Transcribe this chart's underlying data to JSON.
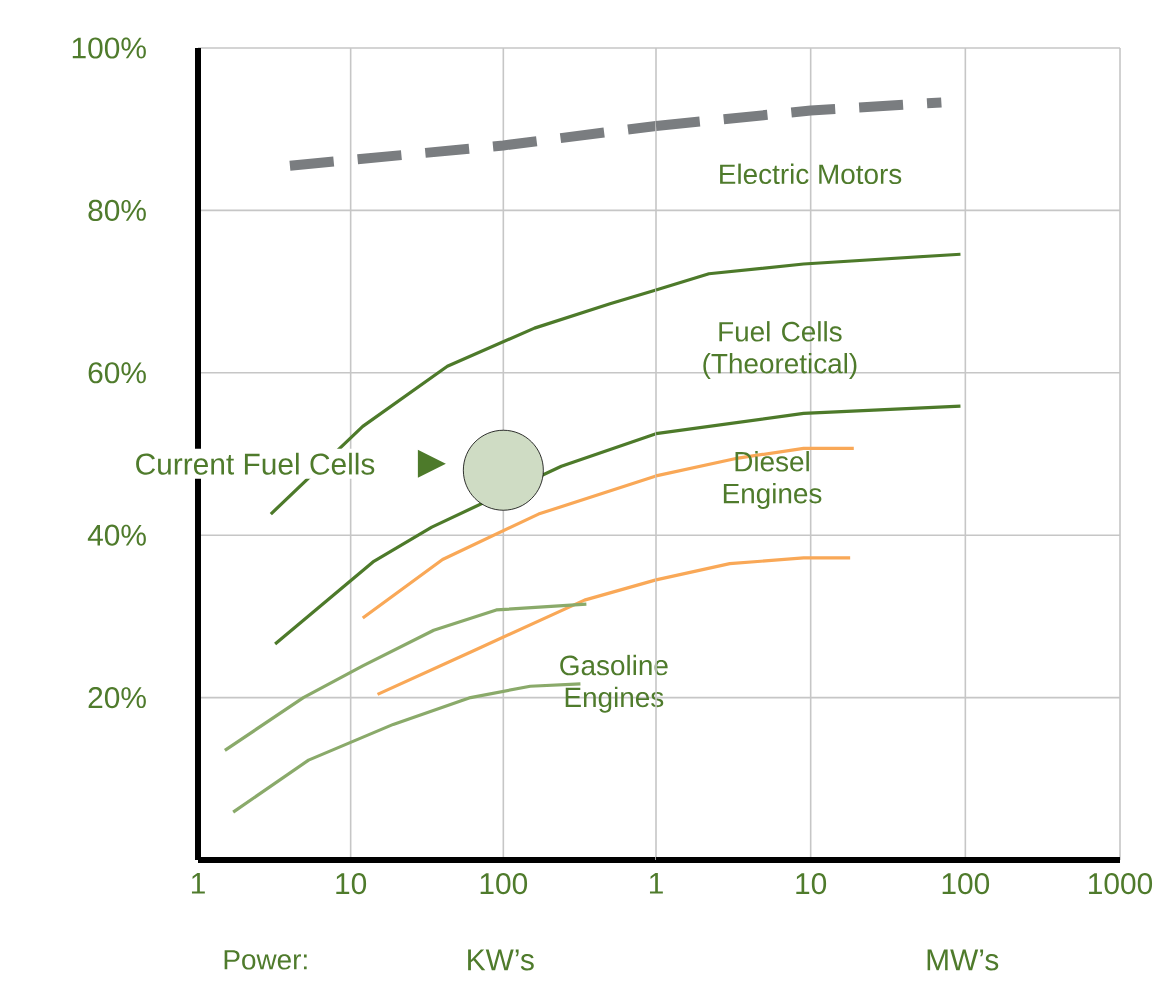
{
  "chart_data": [
    {
      "type": "line",
      "xlabel": "KW’s",
      "log": "x",
      "grid": true,
      "marker": "none",
      "line_style": "solid",
      "xlim": [
        1,
        1000
      ],
      "ylim": [
        0,
        100
      ],
      "xticks": [
        1,
        10,
        100
      ],
      "yticks": [
        {
          "value": 20,
          "label": "20%"
        },
        {
          "value": 40,
          "label": "40%"
        },
        {
          "value": 60,
          "label": "60%"
        },
        {
          "value": 80,
          "label": "80%"
        },
        {
          "value": 100,
          "label": "100%"
        }
      ],
      "series": [
        {
          "color": "#7a7d80",
          "line_style": "dashed",
          "x": [
            4,
            100,
            1000
          ],
          "values": [
            85.5,
            88,
            90.4
          ]
        },
        {
          "color": "#4d7a2a",
          "x": [
            3,
            12,
            43,
            160,
            500,
            1000
          ],
          "values": [
            42.6,
            53.4,
            60.8,
            65.5,
            68.5,
            70.2
          ]
        },
        {
          "color": "#4d7a2a",
          "x": [
            3.2,
            14,
            34,
            240,
            1000
          ],
          "values": [
            26.6,
            36.7,
            41,
            48.5,
            52.5
          ]
        },
        {
          "color": "#f9a857",
          "x": [
            12,
            40,
            170,
            1000
          ],
          "values": [
            29.8,
            37,
            42.6,
            47.3
          ]
        },
        {
          "color": "#f9a857",
          "x": [
            15,
            66,
            340,
            1000
          ],
          "values": [
            20.4,
            25.9,
            32,
            34.5
          ]
        },
        {
          "color": "#8aaa6a",
          "x": [
            1.5,
            4.9,
            12,
            35,
            90,
            350
          ],
          "values": [
            13.5,
            20,
            23.9,
            28.3,
            30.8,
            31.5
          ]
        },
        {
          "color": "#8aaa6a",
          "x": [
            1.7,
            5.3,
            19,
            61,
            150,
            320
          ],
          "values": [
            5.9,
            12.3,
            16.7,
            20,
            21.4,
            21.7
          ]
        },
        {
          "type": "bubble",
          "color": "#cfdcc4",
          "x": [
            100
          ],
          "values": [
            48
          ],
          "sizes": [
            1
          ]
        }
      ],
      "annotations": [
        "Gasoline Engines",
        "Current Fuel Cells",
        "Power:"
      ]
    },
    {
      "type": "line",
      "xlabel": "MW’s",
      "log": "x",
      "grid": true,
      "marker": "none",
      "line_style": "solid",
      "tick_labels": "x",
      "xlim": [
        1,
        1000
      ],
      "ylim": [
        0,
        100
      ],
      "xticks": [
        1,
        10,
        100,
        1000
      ],
      "yticks": [
        20,
        40,
        60,
        80,
        100
      ],
      "series": [
        {
          "color": "#7a7d80",
          "line_style": "dashed",
          "x": [
            1,
            10,
            70
          ],
          "values": [
            90.4,
            92.3,
            93.3
          ]
        },
        {
          "color": "#4d7a2a",
          "x": [
            1,
            2.2,
            9,
            93
          ],
          "values": [
            70.2,
            72.2,
            73.4,
            74.6
          ]
        },
        {
          "color": "#4d7a2a",
          "x": [
            1,
            9,
            93
          ],
          "values": [
            52.5,
            55,
            55.9
          ]
        },
        {
          "color": "#f9a857",
          "x": [
            1,
            3.4,
            9,
            19
          ],
          "values": [
            47.3,
            49.5,
            50.7,
            50.7
          ]
        },
        {
          "color": "#f9a857",
          "x": [
            1,
            3,
            9,
            18
          ],
          "values": [
            34.5,
            36.5,
            37.2,
            37.2
          ]
        }
      ],
      "annotations": [
        "Electric Motors",
        "Fuel Cells (Theoretical)",
        "Diesel Engines"
      ]
    }
  ]
}
